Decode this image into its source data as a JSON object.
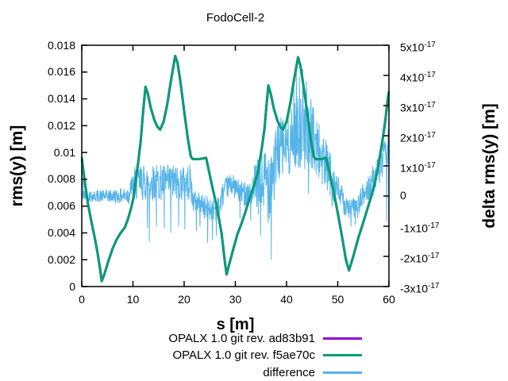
{
  "title": "FodoCell-2",
  "xlabel": "s [m]",
  "ylabel": "rms(y) [m]",
  "y2label": "delta rms(y) [m]",
  "colors": {
    "purple": "#9400d3",
    "teal": "#009e73",
    "skyblue": "#56b4e9",
    "axis": "#000000"
  },
  "legend": [
    {
      "label": "OPALX 1.0 git rev. ad83b91",
      "color": "#9400d3"
    },
    {
      "label": "OPALX 1.0 git rev. f5ae70c",
      "color": "#009e73"
    },
    {
      "label": "difference",
      "color": "#56b4e9"
    }
  ],
  "chart_data": {
    "type": "line",
    "title": "FodoCell-2",
    "xlabel": "s [m]",
    "ylabel": "rms(y) [m]",
    "y2label": "delta rms(y) [m]",
    "grid": false,
    "legend_position": "below-center",
    "xlim": [
      0,
      60
    ],
    "ylim": [
      0,
      0.018
    ],
    "y2lim_1e17": [
      -3,
      5
    ],
    "x_ticks": [
      {
        "v": 0,
        "label": "0"
      },
      {
        "v": 10,
        "label": "10"
      },
      {
        "v": 20,
        "label": "20"
      },
      {
        "v": 30,
        "label": "30"
      },
      {
        "v": 40,
        "label": "40"
      },
      {
        "v": 50,
        "label": "50"
      },
      {
        "v": 60,
        "label": "60"
      }
    ],
    "y_ticks": [
      {
        "v": 0.018,
        "label": "0.018"
      },
      {
        "v": 0.016,
        "label": "0.016"
      },
      {
        "v": 0.014,
        "label": "0.014"
      },
      {
        "v": 0.012,
        "label": "0.012"
      },
      {
        "v": 0.01,
        "label": "0.01"
      },
      {
        "v": 0.008,
        "label": "0.008"
      },
      {
        "v": 0.006,
        "label": "0.006"
      },
      {
        "v": 0.004,
        "label": "0.004"
      },
      {
        "v": 0.002,
        "label": "0.002"
      },
      {
        "v": 0,
        "label": "0"
      }
    ],
    "y2_ticks": [
      {
        "v": 5,
        "label": "5x10^-17"
      },
      {
        "v": 4,
        "label": "4x10^-17"
      },
      {
        "v": 3,
        "label": "3x10^-17"
      },
      {
        "v": 2,
        "label": "2x10^-17"
      },
      {
        "v": 1,
        "label": "1x10^-17"
      },
      {
        "v": 0,
        "label": "0"
      },
      {
        "v": -1,
        "label": "-1x10^-17"
      },
      {
        "v": -2,
        "label": "-2x10^-17"
      },
      {
        "v": -3,
        "label": "-3x10^-17"
      }
    ],
    "series": [
      {
        "name": "OPALX 1.0 git rev. ad83b91",
        "axis": "y1",
        "color": "#9400d3",
        "same_points_as": "OPALX 1.0 git rev. f5ae70c",
        "note": "identical curve, completely hidden beneath f5ae70c"
      },
      {
        "name": "OPALX 1.0 git rev. f5ae70c",
        "axis": "y1",
        "color": "#009e73",
        "points": [
          [
            0,
            0.0096
          ],
          [
            0.6,
            0.0078
          ],
          [
            1.2,
            0.0062
          ],
          [
            1.8,
            0.005
          ],
          [
            2.4,
            0.0039
          ],
          [
            3,
            0.0027
          ],
          [
            3.5,
            0.0015
          ],
          [
            3.9,
            0.0004
          ],
          [
            4.4,
            0.0009
          ],
          [
            5.2,
            0.0019
          ],
          [
            6,
            0.0028
          ],
          [
            6.8,
            0.0035
          ],
          [
            7.6,
            0.004
          ],
          [
            8.4,
            0.0044
          ],
          [
            9,
            0.005
          ],
          [
            9.6,
            0.0058
          ],
          [
            10.1,
            0.0066
          ],
          [
            10.5,
            0.0078
          ],
          [
            11,
            0.0092
          ],
          [
            11.5,
            0.0108
          ],
          [
            12,
            0.0131
          ],
          [
            12.45,
            0.0149
          ],
          [
            12.9,
            0.0144
          ],
          [
            13.5,
            0.0133
          ],
          [
            14.2,
            0.0124
          ],
          [
            14.8,
            0.0119
          ],
          [
            15.3,
            0.0117
          ],
          [
            16,
            0.0123
          ],
          [
            16.7,
            0.0136
          ],
          [
            17.4,
            0.0153
          ],
          [
            18.25,
            0.0172
          ],
          [
            18.7,
            0.0167
          ],
          [
            19.3,
            0.0152
          ],
          [
            20,
            0.0131
          ],
          [
            20.7,
            0.0111
          ],
          [
            21.3,
            0.0097
          ],
          [
            21.7,
            0.0095
          ],
          [
            22.8,
            0.0095
          ],
          [
            24.3,
            0.0096
          ],
          [
            24.9,
            0.0085
          ],
          [
            25.7,
            0.0071
          ],
          [
            26.5,
            0.0057
          ],
          [
            27.3,
            0.004
          ],
          [
            28,
            0.0017
          ],
          [
            28.3,
            0.0009
          ],
          [
            28.9,
            0.0018
          ],
          [
            29.6,
            0.0028
          ],
          [
            30.4,
            0.0039
          ],
          [
            31.2,
            0.0047
          ],
          [
            32,
            0.0056
          ],
          [
            32.8,
            0.0066
          ],
          [
            33.6,
            0.0075
          ],
          [
            34.4,
            0.0085
          ],
          [
            35.2,
            0.0104
          ],
          [
            35.7,
            0.0118
          ],
          [
            36.1,
            0.0136
          ],
          [
            36.45,
            0.015
          ],
          [
            36.9,
            0.0144
          ],
          [
            37.5,
            0.0133
          ],
          [
            38.2,
            0.0124
          ],
          [
            38.8,
            0.0119
          ],
          [
            39.3,
            0.0117
          ],
          [
            40,
            0.0123
          ],
          [
            40.7,
            0.0136
          ],
          [
            41.4,
            0.0153
          ],
          [
            42.25,
            0.0171
          ],
          [
            42.7,
            0.0165
          ],
          [
            43.3,
            0.015
          ],
          [
            44,
            0.0131
          ],
          [
            44.7,
            0.0111
          ],
          [
            45.3,
            0.0097
          ],
          [
            45.7,
            0.0095
          ],
          [
            46.8,
            0.0095
          ],
          [
            47.7,
            0.0096
          ],
          [
            48.4,
            0.0085
          ],
          [
            49.2,
            0.0071
          ],
          [
            50,
            0.0055
          ],
          [
            50.8,
            0.0038
          ],
          [
            51.6,
            0.002
          ],
          [
            52.2,
            0.0012
          ],
          [
            53,
            0.0022
          ],
          [
            54,
            0.0036
          ],
          [
            55,
            0.0048
          ],
          [
            55.8,
            0.0058
          ],
          [
            56.6,
            0.0068
          ],
          [
            57.3,
            0.0078
          ],
          [
            58,
            0.0092
          ],
          [
            58.7,
            0.0108
          ],
          [
            59.3,
            0.0124
          ],
          [
            59.8,
            0.0141
          ],
          [
            60,
            0.0145
          ]
        ]
      },
      {
        "name": "difference",
        "axis": "y2",
        "color": "#56b4e9",
        "units": "1e-17 m",
        "envelope_1e17": [
          [
            0,
            -0.15,
            0.2
          ],
          [
            2,
            -0.2,
            0.2
          ],
          [
            5,
            -0.2,
            0.2
          ],
          [
            8,
            -0.25,
            0.25
          ],
          [
            9.3,
            -0.3,
            0.45
          ],
          [
            10.2,
            -0.35,
            0.9
          ],
          [
            10.6,
            -0.15,
            1.05
          ],
          [
            21.3,
            -0.15,
            1.05
          ],
          [
            21.7,
            -0.55,
            0.2
          ],
          [
            23.5,
            -0.55,
            0.15
          ],
          [
            23.9,
            -0.8,
            0.0
          ],
          [
            26.9,
            -0.8,
            0.0
          ],
          [
            27.5,
            -0.35,
            0.45
          ],
          [
            28.4,
            -0.05,
            0.65
          ],
          [
            29.3,
            0.05,
            0.8
          ],
          [
            30.0,
            -0.1,
            0.6
          ],
          [
            31.2,
            -0.3,
            0.5
          ],
          [
            33.4,
            -0.35,
            0.55
          ],
          [
            33.8,
            -0.6,
            1.1
          ],
          [
            35.4,
            -0.7,
            1.5
          ],
          [
            36.4,
            -0.9,
            2.0
          ],
          [
            37.6,
            -0.3,
            2.1
          ],
          [
            38.4,
            0.5,
            2.6
          ],
          [
            41.2,
            0.7,
            2.9
          ],
          [
            41.8,
            0.9,
            3.3
          ],
          [
            44.6,
            0.9,
            3.3
          ],
          [
            45.3,
            0.8,
            3.0
          ],
          [
            46.6,
            0.3,
            2.4
          ],
          [
            48.1,
            0.0,
            1.7
          ],
          [
            49.6,
            -0.3,
            0.9
          ],
          [
            50.9,
            -0.5,
            0.3
          ],
          [
            51.6,
            -0.75,
            -0.05
          ],
          [
            53.9,
            -0.75,
            -0.05
          ],
          [
            54.6,
            -0.5,
            0.3
          ],
          [
            56.1,
            -0.2,
            0.8
          ],
          [
            57.6,
            0.2,
            1.2
          ],
          [
            58.8,
            0.6,
            1.7
          ],
          [
            60,
            0.9,
            2.1
          ]
        ],
        "spikes_1e17": [
          [
            0.25,
            0.9
          ],
          [
            9.7,
            0.55
          ],
          [
            10.35,
            0.95
          ],
          [
            12.8,
            -1.05
          ],
          [
            13.2,
            -1.5
          ],
          [
            14.6,
            -1.0
          ],
          [
            16.1,
            -1.05
          ],
          [
            17.4,
            -1.2
          ],
          [
            18.9,
            -1.0
          ],
          [
            20.15,
            -1.1
          ],
          [
            22.4,
            -1.15
          ],
          [
            23.1,
            -1.0
          ],
          [
            24.6,
            -1.55
          ],
          [
            25.5,
            -1.45
          ],
          [
            26.3,
            -1.3
          ],
          [
            30.9,
            -0.75
          ],
          [
            33.0,
            -0.8
          ],
          [
            34.9,
            -1.3
          ],
          [
            37.0,
            -2.1
          ],
          [
            41.4,
            3.6
          ],
          [
            41.9,
            4.1
          ],
          [
            42.5,
            3.95
          ],
          [
            43.2,
            4.2
          ],
          [
            43.9,
            3.8
          ],
          [
            44.3,
            0.1
          ],
          [
            48.9,
            -0.35
          ],
          [
            52.6,
            -1.0
          ],
          [
            53.4,
            -0.95
          ],
          [
            59.55,
            -0.85
          ],
          [
            59.85,
            2.2
          ]
        ]
      }
    ]
  }
}
